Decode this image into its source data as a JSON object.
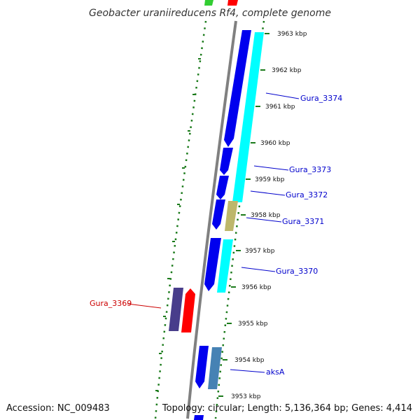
{
  "title": "Geobacter uraniireducens Rf4, complete genome",
  "accession": "Accession: NC_009483",
  "summary": "Topology: circular; Length: 5,136,364 bp; Genes: 4,414",
  "colors": {
    "backbone": "#808080",
    "dots": "#1a7a1a",
    "forward_label": "#0000cc",
    "reverse_label": "#cc0000",
    "blue": "#0000ee",
    "cyan": "#00ffff",
    "khaki": "#bdb76b",
    "red": "#ff0000",
    "slate": "#483d8b",
    "steel": "#4682b4",
    "green": "#32cd32"
  },
  "ticks": [
    {
      "label": "3963 kbp"
    },
    {
      "label": "3962 kbp"
    },
    {
      "label": "3961 kbp"
    },
    {
      "label": "3960 kbp"
    },
    {
      "label": "3959 kbp"
    },
    {
      "label": "3958 kbp"
    },
    {
      "label": "3957 kbp"
    },
    {
      "label": "3956 kbp"
    },
    {
      "label": "3955 kbp"
    },
    {
      "label": "3954 kbp"
    },
    {
      "label": "3953 kbp"
    }
  ],
  "gene_labels": [
    {
      "text": "Gura_3374",
      "strand": "forward"
    },
    {
      "text": "Gura_3373",
      "strand": "forward"
    },
    {
      "text": "Gura_3372",
      "strand": "forward"
    },
    {
      "text": "Gura_3371",
      "strand": "forward"
    },
    {
      "text": "Gura_3370",
      "strand": "forward"
    },
    {
      "text": "Gura_3369",
      "strand": "reverse"
    },
    {
      "text": "aksA",
      "strand": "forward"
    }
  ]
}
